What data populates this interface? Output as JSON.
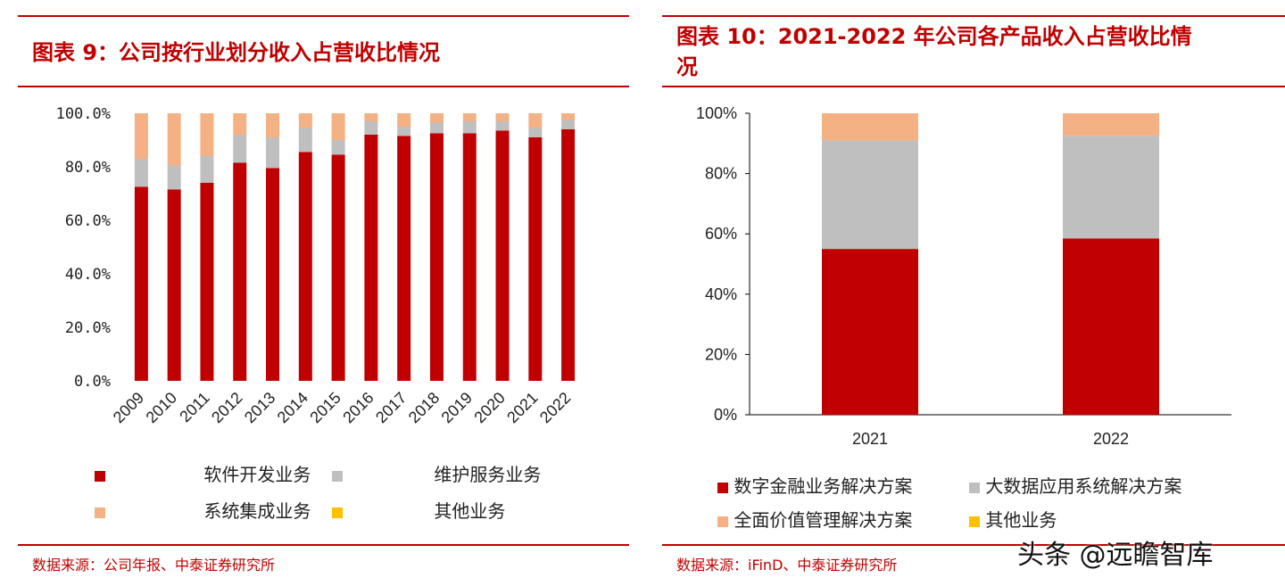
{
  "left": {
    "title": "图表 9：公司按行业划分收入占营收比情况",
    "source": "数据来源：公司年报、中泰证券研究所",
    "legend": [
      "软件开发业务",
      "维护服务业务",
      "系统集成业务",
      "其他业务"
    ]
  },
  "right": {
    "title_line1": "图表 10：2021-2022 年公司各产品收入占营收比情",
    "title_line2": "况",
    "source": "数据来源：iFinD、中泰证券研究所",
    "legend": [
      "数字金融业务解决方案",
      "大数据应用系统解决方案",
      "全面价值管理解决方案",
      "其他业务"
    ]
  },
  "watermark": "头条 @远瞻智库",
  "colors": {
    "red": "#c00000",
    "gray": "#bfbfbf",
    "orange": "#f4b183",
    "yellow": "#ffc000"
  },
  "chart_data": [
    {
      "type": "bar",
      "stacked": true,
      "categories": [
        "2009",
        "2010",
        "2011",
        "2012",
        "2013",
        "2014",
        "2015",
        "2016",
        "2017",
        "2018",
        "2019",
        "2020",
        "2021",
        "2022"
      ],
      "series": [
        {
          "name": "软件开发业务",
          "values": [
            72.5,
            71.5,
            74,
            81.5,
            79.5,
            85.5,
            84.5,
            92,
            91.5,
            92.5,
            92.5,
            93.5,
            91,
            94
          ]
        },
        {
          "name": "维护服务业务",
          "values": [
            10.5,
            9,
            10,
            10.5,
            11.5,
            9,
            5.5,
            5,
            3.5,
            4,
            4.5,
            3.5,
            3.5,
            3.5
          ]
        },
        {
          "name": "系统集成业务",
          "values": [
            17,
            19.5,
            16,
            8,
            9,
            5.5,
            10,
            3,
            5,
            3.5,
            3,
            3,
            5.5,
            2.5
          ]
        },
        {
          "name": "其他业务",
          "values": [
            0,
            0,
            0,
            0,
            0,
            0,
            0,
            0,
            0,
            0,
            0,
            0,
            0,
            0
          ]
        }
      ],
      "yticks": [
        "0.0%",
        "20.0%",
        "40.0%",
        "60.0%",
        "80.0%",
        "100.0%"
      ],
      "ylim": [
        0,
        100
      ]
    },
    {
      "type": "bar",
      "stacked": true,
      "categories": [
        "2021",
        "2022"
      ],
      "series": [
        {
          "name": "数字金融业务解决方案",
          "values": [
            55,
            58.5
          ]
        },
        {
          "name": "大数据应用系统解决方案",
          "values": [
            36,
            34
          ]
        },
        {
          "name": "全面价值管理解决方案",
          "values": [
            9,
            7.5
          ]
        },
        {
          "name": "其他业务",
          "values": [
            0,
            0
          ]
        }
      ],
      "yticks": [
        "0%",
        "20%",
        "40%",
        "60%",
        "80%",
        "100%"
      ],
      "ylim": [
        0,
        100
      ]
    }
  ]
}
